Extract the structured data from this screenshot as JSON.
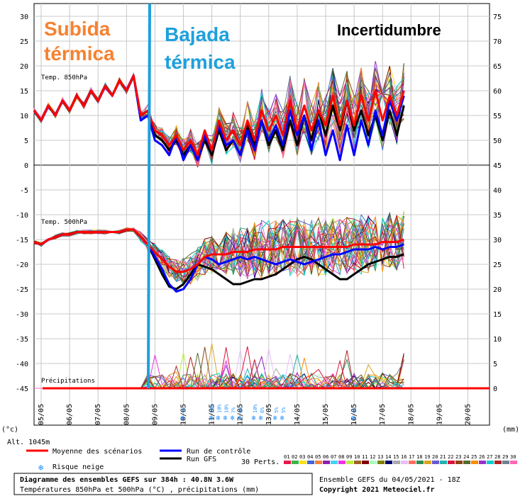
{
  "chart_data": {
    "type": "line",
    "annotations": {
      "subida": [
        "Subida",
        "térmica"
      ],
      "bajada": [
        "Bajada",
        "térmica"
      ],
      "incertidumbre": "Incertidumbre"
    },
    "panel_labels": {
      "t850": "Temp. 850hPa",
      "t500": "Temp. 500hPa",
      "precip": "Précipitations"
    },
    "y_left_ticks": [
      30,
      25,
      20,
      15,
      10,
      5,
      0,
      -5,
      -10,
      -15,
      -20,
      -25,
      -30,
      -35,
      -40,
      -45
    ],
    "y_right_ticks": [
      75,
      70,
      65,
      60,
      55,
      50,
      45,
      40,
      35,
      30,
      25,
      20,
      15,
      10,
      5,
      0
    ],
    "y_left_unit": "(°c)",
    "y_right_unit": "(mm)",
    "x_dates": [
      "05/05",
      "06/05",
      "07/05",
      "08/05",
      "09/05",
      "10/05",
      "11/05",
      "12/05",
      "13/05",
      "14/05",
      "15/05",
      "16/05",
      "17/05",
      "18/05",
      "19/05",
      "20/05"
    ],
    "snow_risk": [
      {
        "day": 10.0,
        "pct": "5%"
      },
      {
        "day": 11.0,
        "pct": "20%"
      },
      {
        "day": 11.25,
        "pct": "10%"
      },
      {
        "day": 11.5,
        "pct": "10%"
      },
      {
        "day": 11.75,
        "pct": "7%"
      },
      {
        "day": 12.0,
        "pct": "8%"
      },
      {
        "day": 12.5,
        "pct": "10%"
      },
      {
        "day": 12.75,
        "pct": "6%"
      },
      {
        "day": 13.25,
        "pct": "5%"
      },
      {
        "day": 13.5,
        "pct": "5%"
      },
      {
        "day": 16.0,
        "pct": "6%"
      }
    ],
    "series": [
      {
        "name": "Moyenne des scénarios",
        "color": "#ff0000",
        "t850": [
          11,
          9,
          12,
          10,
          13,
          11,
          14,
          12,
          15,
          13,
          16,
          14,
          17,
          15,
          18,
          10,
          11,
          7,
          6,
          4,
          6,
          3,
          5,
          2,
          7,
          3,
          9,
          5,
          7,
          4,
          9,
          5,
          11,
          7,
          10,
          6,
          13,
          7,
          12,
          7,
          11,
          8,
          14,
          8,
          13,
          8,
          14,
          9,
          15,
          9,
          14,
          10,
          15
        ],
        "t500": [
          -15.5,
          -16,
          -15,
          -14.5,
          -14,
          -14,
          -13.5,
          -13.5,
          -13.5,
          -13.5,
          -13.5,
          -13.5,
          -13.5,
          -13,
          -13,
          -14.5,
          -16,
          -17.5,
          -19,
          -20.5,
          -21.5,
          -21.5,
          -21,
          -20,
          -18.5,
          -18,
          -18,
          -18,
          -17.5,
          -17.5,
          -17.5,
          -17,
          -17,
          -17,
          -17,
          -16.5,
          -16.5,
          -16.5,
          -16.5,
          -16.5,
          -16.5,
          -16.5,
          -16.5,
          -16.5,
          -16.5,
          -16,
          -16,
          -16,
          -16,
          -15.5,
          -15.5,
          -15.5,
          -15
        ]
      },
      {
        "name": "Run de contrôle",
        "color": "#0000ff",
        "t850": [
          11,
          9,
          12,
          10,
          13,
          11,
          14,
          12,
          15,
          13,
          16,
          14,
          17,
          15,
          18,
          9,
          10,
          5,
          4,
          2,
          6,
          1,
          4,
          1,
          6,
          3,
          8,
          4,
          5,
          2,
          7,
          3,
          9,
          5,
          8,
          4,
          11,
          6,
          10,
          3,
          9,
          2,
          7,
          1,
          8,
          2,
          9,
          4,
          11,
          6,
          13,
          9,
          14
        ],
        "t500": [
          -15.5,
          -16,
          -15,
          -14.5,
          -14,
          -14,
          -13.5,
          -13.5,
          -13.5,
          -13.5,
          -13.5,
          -13.5,
          -13.5,
          -13,
          -13,
          -14.5,
          -16,
          -18.5,
          -21,
          -24,
          -25.5,
          -25,
          -23,
          -20,
          -18.5,
          -19,
          -20,
          -19.5,
          -19,
          -18.5,
          -19,
          -18.5,
          -19,
          -19.5,
          -20,
          -19.5,
          -19,
          -19.5,
          -20,
          -19.5,
          -19,
          -18.5,
          -18,
          -18,
          -17.5,
          -17,
          -17,
          -17,
          -16.5,
          -17,
          -16.5,
          -16.5,
          -16
        ]
      },
      {
        "name": "Run GFS",
        "color": "#000000",
        "t850": [
          11,
          9,
          12,
          10,
          13,
          11,
          14,
          12,
          15,
          13,
          16,
          14,
          17,
          15,
          18,
          10,
          11,
          6,
          5,
          3,
          5,
          2,
          4,
          1,
          5,
          2,
          7,
          3,
          5,
          2,
          8,
          4,
          9,
          4,
          7,
          3,
          9,
          4,
          10,
          5,
          11,
          6,
          12,
          7,
          13,
          7,
          11,
          6,
          10,
          5,
          11,
          6,
          12
        ],
        "t500": [
          -15.5,
          -16,
          -15,
          -14.5,
          -14,
          -14,
          -13.5,
          -13.5,
          -13.5,
          -13.5,
          -13.5,
          -13.5,
          -13.5,
          -13,
          -13,
          -14.5,
          -16,
          -19,
          -22,
          -24.5,
          -25,
          -24,
          -22,
          -20,
          -20.5,
          -21,
          -22,
          -23,
          -24,
          -24,
          -23.5,
          -23,
          -23,
          -22.5,
          -22,
          -21,
          -20,
          -19,
          -18.5,
          -19,
          -20,
          -21,
          -22,
          -23,
          -23,
          -22,
          -21,
          -20,
          -19.5,
          -19,
          -18.5,
          -18.5,
          -18
        ]
      }
    ],
    "legend": {
      "mean": "Moyenne des scénarios",
      "control": "Run de contrôle",
      "gfs": "Run GFS",
      "snow": "Risque neige",
      "perts": "30 Perts.",
      "pert_numbers": [
        "01",
        "02",
        "03",
        "04",
        "05",
        "06",
        "07",
        "08",
        "09",
        "10",
        "11",
        "12",
        "13",
        "14",
        "15",
        "16",
        "17",
        "18",
        "19",
        "20",
        "21",
        "22",
        "23",
        "24",
        "25",
        "26",
        "27",
        "28",
        "29",
        "30"
      ]
    },
    "footer": {
      "title": "Diagramme des ensembles GEFS sur 384h : 40.8N 3.6W",
      "subtitle": "Températures 850hPa et 500hPa (°C) , précipitations (mm)",
      "run": "Ensemble GEFS du 04/05/2021 - 18Z",
      "copyright": "Copyright 2021 Meteociel.fr",
      "alt": "Alt. 1045m"
    },
    "colors": {
      "subida": "#f58231",
      "bajada": "#1ea0dc",
      "mean": "#ff0000",
      "control": "#0000ff",
      "gfs": "#000000"
    }
  }
}
